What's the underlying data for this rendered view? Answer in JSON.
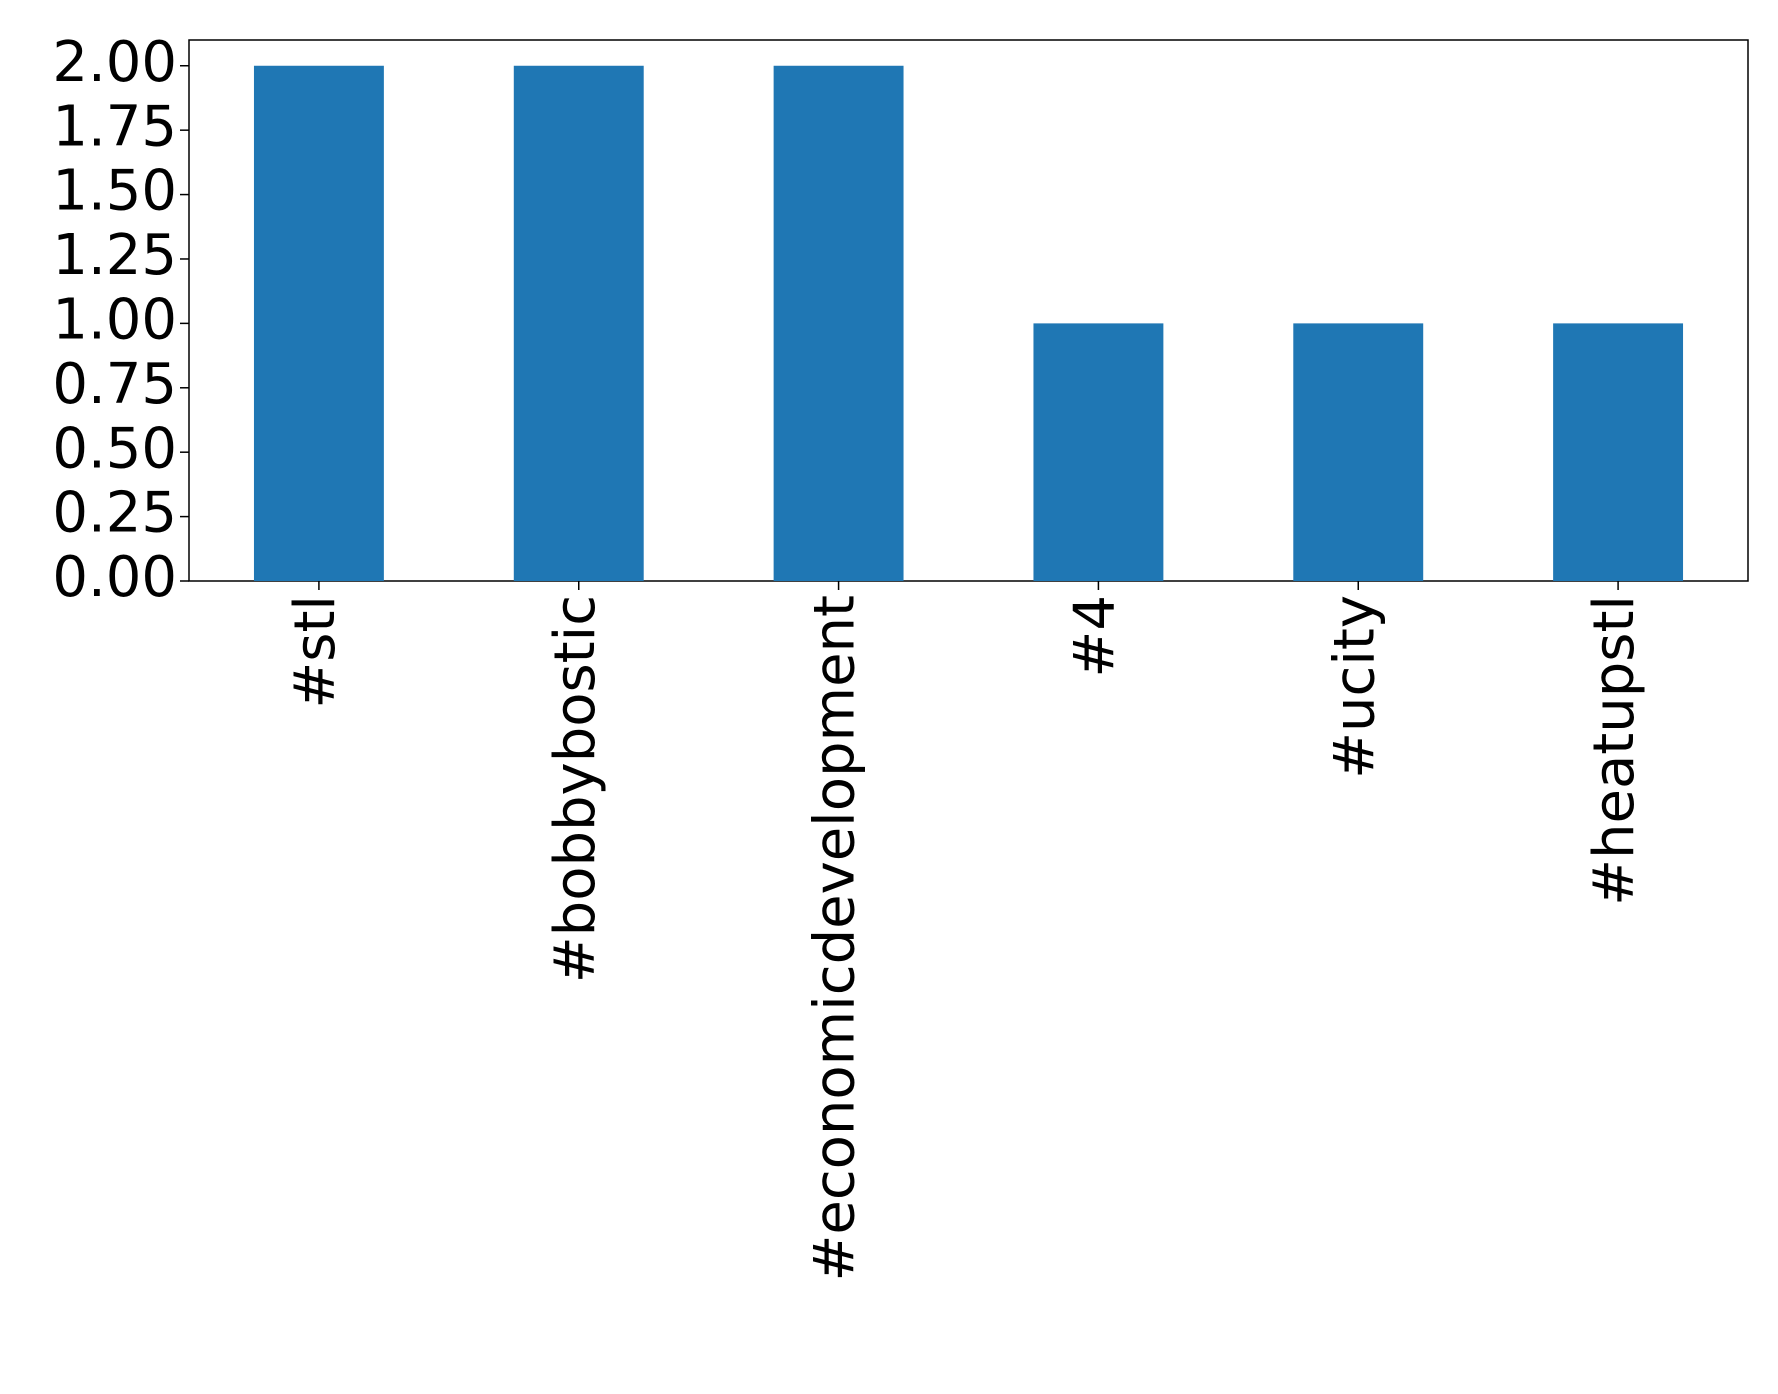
{
  "chart_data": {
    "type": "bar",
    "categories": [
      "#stl",
      "#bobbybostic",
      "#economicdevelopment",
      "#4",
      "#ucity",
      "#heatupstl"
    ],
    "values": [
      2,
      2,
      2,
      1,
      1,
      1
    ],
    "color": "#1f77b4",
    "ylim": [
      0,
      2.1
    ],
    "yticks": [
      {
        "value": 0,
        "label": "0.00"
      },
      {
        "value": 0.25,
        "label": "0.25"
      },
      {
        "value": 0.5,
        "label": "0.50"
      },
      {
        "value": 0.75,
        "label": "0.75"
      },
      {
        "value": 1,
        "label": "1.00"
      },
      {
        "value": 1.25,
        "label": "1.25"
      },
      {
        "value": 1.5,
        "label": "1.50"
      },
      {
        "value": 1.75,
        "label": "1.75"
      },
      {
        "value": 2,
        "label": "2.00"
      }
    ],
    "grid": false
  }
}
